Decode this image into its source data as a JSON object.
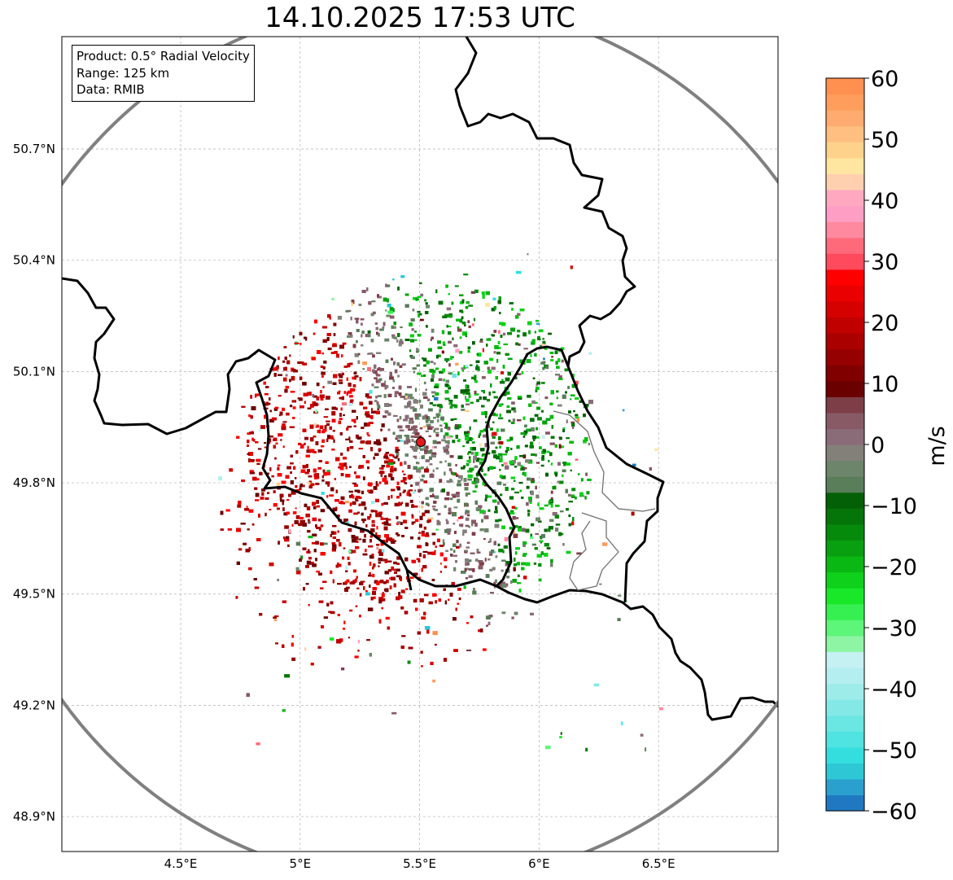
{
  "title": "14.10.2025 17:53 UTC",
  "info_box": {
    "product": "Product: 0.5° Radial Velocity",
    "range": "Range: 125 km",
    "data": "Data: RMIB"
  },
  "map": {
    "lon_range": [
      4.0,
      7.0
    ],
    "lat_range": [
      48.8,
      51.0
    ],
    "x_ticks": [
      "4.5°E",
      "5°E",
      "5.5°E",
      "6°E",
      "6.5°E"
    ],
    "x_tick_values": [
      4.5,
      5.0,
      5.5,
      6.0,
      6.5
    ],
    "y_ticks": [
      "50.7°N",
      "50.4°N",
      "50.1°N",
      "49.8°N",
      "49.5°N",
      "49.2°N",
      "48.9°N"
    ],
    "y_tick_values": [
      50.7,
      50.4,
      50.1,
      49.8,
      49.5,
      49.2,
      48.9
    ],
    "grid": true,
    "radar_site": {
      "lon": 5.505,
      "lat": 49.915,
      "color": "#e31a1c"
    },
    "range_ring_color": "#808080",
    "border_color": "#000000"
  },
  "colorbar": {
    "label": "m/s",
    "min": -60,
    "max": 60,
    "ticks": [
      "60",
      "50",
      "40",
      "30",
      "20",
      "10",
      "0",
      "−10",
      "−20",
      "−30",
      "−40",
      "−50",
      "−60"
    ],
    "colors": [
      "#1f78c1",
      "#2aa0cf",
      "#2ec7d6",
      "#35dede",
      "#4fe3e1",
      "#6ae6e3",
      "#84e9e6",
      "#9decea",
      "#b4eef0",
      "#c5f1f3",
      "#8ef5a4",
      "#5df57a",
      "#35f050",
      "#18e828",
      "#0fd01a",
      "#0ab814",
      "#08a010",
      "#068a0c",
      "#057409",
      "#046006",
      "#5a7d5a",
      "#6d856b",
      "#83807a",
      "#8a6b78",
      "#875a66",
      "#7d3e48",
      "#6b0000",
      "#800000",
      "#950000",
      "#aa0000",
      "#c00000",
      "#d50000",
      "#ea0000",
      "#ff0000",
      "#ff4a5d",
      "#ff6a7b",
      "#ff8aa0",
      "#ff9ec5",
      "#ffa8c0",
      "#ffd0b0",
      "#ffe6a0",
      "#ffd28c",
      "#ffbf80",
      "#ffab70",
      "#ff9d5c",
      "#ff9050"
    ],
    "colors_order": "bottom_to_top"
  }
}
